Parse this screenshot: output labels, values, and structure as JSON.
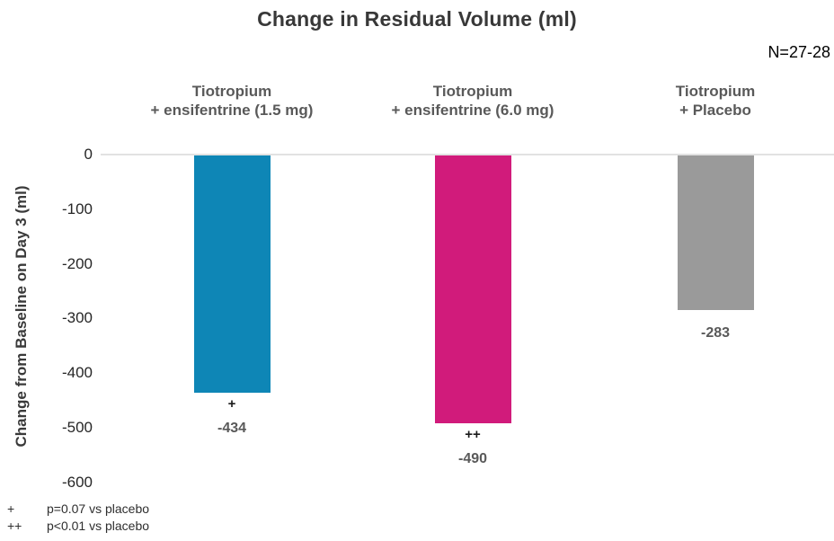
{
  "chart_data": {
    "type": "bar",
    "title": "Change in Residual Volume (ml)",
    "annotation": "N=27-28",
    "ylabel": "Change from Baseline on Day 3 (ml)",
    "xlabel": "",
    "ylim": [
      -600,
      0
    ],
    "yticks": [
      0,
      -100,
      -200,
      -300,
      -400,
      -500,
      -600
    ],
    "grid": false,
    "baseline_at_zero": true,
    "legend": "none",
    "categories": [
      "Tiotropium + ensifentrine (1.5 mg)",
      "Tiotropium + ensifentrine (6.0 mg)",
      "Tiotropium + Placebo"
    ],
    "category_label_lines": [
      [
        "Tiotropium",
        "+ ensifentrine (1.5 mg)"
      ],
      [
        "Tiotropium",
        "+ ensifentrine (6.0 mg)"
      ],
      [
        "Tiotropium",
        "+ Placebo"
      ]
    ],
    "values": [
      -434,
      -490,
      -283
    ],
    "data_labels": [
      "-434",
      "-490",
      "-283"
    ],
    "significance_markers": [
      "+",
      "++",
      ""
    ],
    "bar_colors": [
      "#0E86B6",
      "#D11B7B",
      "#9A9A9A"
    ],
    "value_label_color": "#595959",
    "baseline_color": "#E2E2E2"
  },
  "footnotes": [
    {
      "marker": "+",
      "text": "p=0.07 vs placebo"
    },
    {
      "marker": "++",
      "text": "p<0.01 vs placebo"
    }
  ]
}
